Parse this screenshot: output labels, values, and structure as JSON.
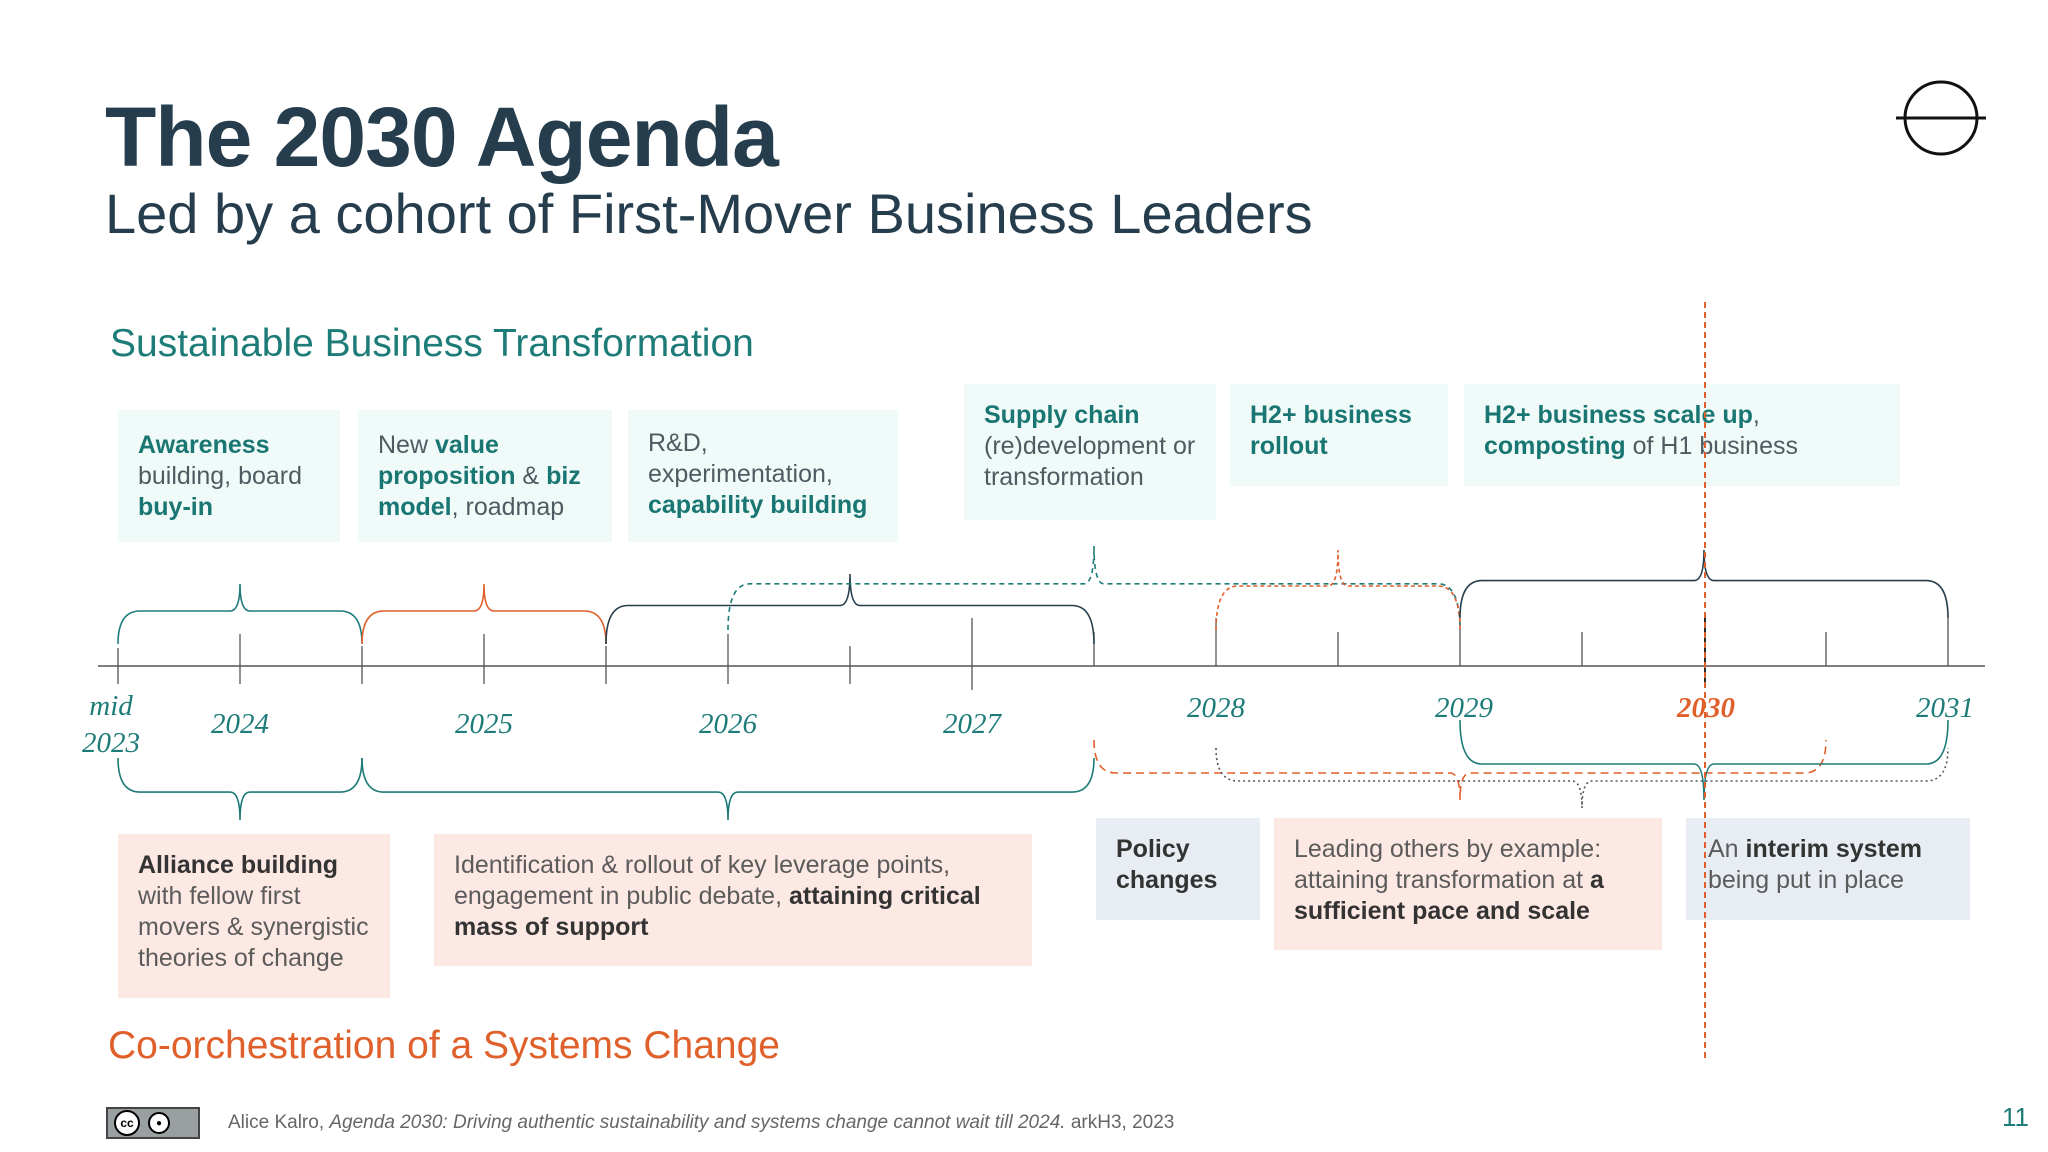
{
  "slide": {
    "title": "The 2030 Agenda",
    "subtitle": "Led by a cohort of First-Mover Business Leaders",
    "section_top": "Sustainable Business Transformation",
    "section_bottom": "Co-orchestration of a Systems Change",
    "page_number": "11"
  },
  "timeline": {
    "years": [
      {
        "label": "mid",
        "label2": "2023"
      },
      {
        "label": "2024"
      },
      {
        "label": "2025"
      },
      {
        "label": "2026"
      },
      {
        "label": "2027"
      },
      {
        "label": "2028"
      },
      {
        "label": "2029"
      },
      {
        "label": "2030",
        "highlight": true
      },
      {
        "label": "2031"
      }
    ]
  },
  "business_boxes": [
    {
      "parts": [
        {
          "t": "Awareness",
          "b": true
        },
        {
          "t": " building, board "
        },
        {
          "t": "buy-in",
          "b": true
        }
      ]
    },
    {
      "parts": [
        {
          "t": "New "
        },
        {
          "t": "value proposition",
          "b": true
        },
        {
          "t": " & "
        },
        {
          "t": "biz model",
          "b": true
        },
        {
          "t": ", roadmap"
        }
      ]
    },
    {
      "parts": [
        {
          "t": "R&D, experimentation, "
        },
        {
          "t": "capability building",
          "b": true
        }
      ]
    },
    {
      "parts": [
        {
          "t": "Supply chain",
          "b": true
        },
        {
          "t": " (re)development or transformation"
        }
      ]
    },
    {
      "parts": [
        {
          "t": "H2+ business rollout",
          "b": true
        }
      ]
    },
    {
      "parts": [
        {
          "t": "H2+ business scale up",
          "b": true
        },
        {
          "t": ", "
        },
        {
          "t": "composting",
          "b": true
        },
        {
          "t": " of H1 business"
        }
      ]
    }
  ],
  "systems_boxes": [
    {
      "parts": [
        {
          "t": "Alliance building",
          "b": true
        },
        {
          "t": " with fellow first movers & synergistic theories of change"
        }
      ]
    },
    {
      "parts": [
        {
          "t": "Identification & rollout of key leverage points, engagement in public debate, "
        },
        {
          "t": "attaining critical mass of support",
          "b": true
        }
      ]
    },
    {
      "parts": [
        {
          "t": "Policy changes",
          "b": true
        }
      ]
    },
    {
      "parts": [
        {
          "t": "Leading others by example: attaining transformation at "
        },
        {
          "t": "a sufficient pace and scale",
          "b": true
        }
      ]
    },
    {
      "parts": [
        {
          "t": "An "
        },
        {
          "t": "interim system",
          "b": true
        },
        {
          "t": " being put in place"
        }
      ]
    }
  ],
  "footer": {
    "author": "Alice Kalro, ",
    "work": "Agenda 2030: Driving authentic sustainability and systems change cannot wait till 2024.",
    "publisher": " arkH3, 2023",
    "license_label": "BY"
  },
  "colors": {
    "teal": "#1e7c78",
    "orange": "#e0602b",
    "dark": "#253d4c",
    "grey_line": "#555555"
  }
}
